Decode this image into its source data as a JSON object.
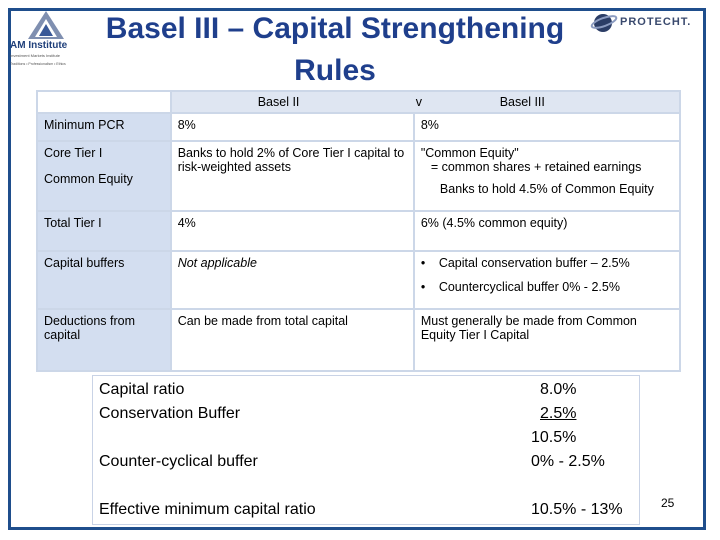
{
  "logos": {
    "left": {
      "name": "AM Institute",
      "sub": "Investment Markets Institute",
      "tagline": "Traditions • Professionalism • Ethics"
    },
    "right": {
      "name": "PROTECHT."
    }
  },
  "title": "Basel III – Capital Strengthening Rules",
  "table": {
    "headers": {
      "basel2": "Basel II",
      "vs": "v",
      "basel3": "Basel III"
    },
    "rows": [
      {
        "label": "Minimum PCR",
        "basel2": "8%",
        "basel3": "8%"
      },
      {
        "label": "Core Tier I",
        "label2": "Common Equity",
        "basel2": "Banks to hold 2% of Core Tier I capital to risk-weighted assets",
        "basel3_line1": "\"Common Equity\"",
        "basel3_line2": "= common shares + retained earnings",
        "basel3_line3": "Banks to hold 4.5% of Common Equity"
      },
      {
        "label": "Total Tier I",
        "basel2": "4%",
        "basel3": "6% (4.5% common equity)"
      },
      {
        "label": "Capital buffers",
        "basel2": "Not applicable",
        "bullet": "•",
        "basel3_items": [
          "Capital conservation buffer – 2.5%",
          "Countercyclical buffer 0% - 2.5%"
        ]
      },
      {
        "label": "Deductions from capital",
        "basel2": "Can be made from total capital",
        "basel3": "Must generally be made from Common Equity Tier I Capital"
      }
    ]
  },
  "summary": {
    "rows": [
      {
        "label": "Capital ratio",
        "value": "8.0%"
      },
      {
        "label": "Conservation Buffer",
        "value": "2.5%"
      },
      {
        "label": "",
        "value": "10.5%"
      },
      {
        "label": "Counter-cyclical buffer",
        "value": "0% - 2.5%"
      },
      {
        "label": "Effective minimum capital ratio",
        "value": "10.5% - 13%"
      }
    ]
  },
  "page_number": "25",
  "colors": {
    "title": "#1f3f8c",
    "frame": "#1f4e8c",
    "label_cells": "#d3def0",
    "header": "#dfe6f2"
  }
}
